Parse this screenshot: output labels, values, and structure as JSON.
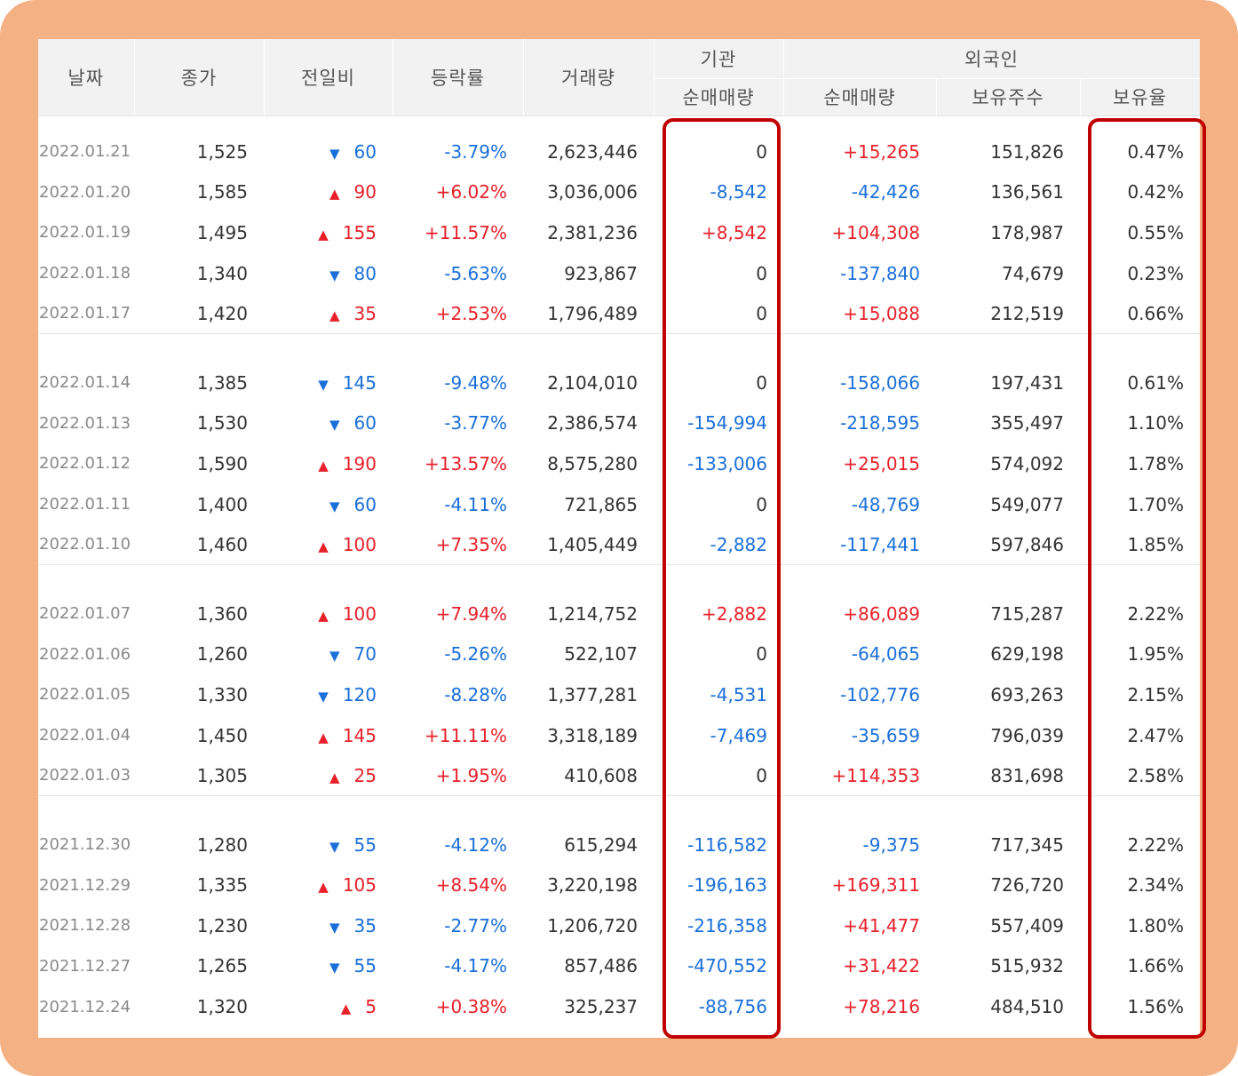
{
  "headers": {
    "date": "날짜",
    "close": "종가",
    "change": "전일비",
    "rate": "등락률",
    "volume": "거래량",
    "institution_group": "기관",
    "foreign_group": "외국인",
    "inst_net": "순매매량",
    "foreign_net": "순매매량",
    "foreign_shares": "보유주수",
    "foreign_ratio": "보유율"
  },
  "groups": [
    [
      {
        "date": "2022.01.21",
        "close": "1,525",
        "dir": "down",
        "change": "60",
        "rate": "-3.79%",
        "volume": "2,623,446",
        "inst": "0",
        "foreign": "+15,265",
        "shares": "151,826",
        "ratio": "0.47%"
      },
      {
        "date": "2022.01.20",
        "close": "1,585",
        "dir": "up",
        "change": "90",
        "rate": "+6.02%",
        "volume": "3,036,006",
        "inst": "-8,542",
        "foreign": "-42,426",
        "shares": "136,561",
        "ratio": "0.42%"
      },
      {
        "date": "2022.01.19",
        "close": "1,495",
        "dir": "up",
        "change": "155",
        "rate": "+11.57%",
        "volume": "2,381,236",
        "inst": "+8,542",
        "foreign": "+104,308",
        "shares": "178,987",
        "ratio": "0.55%"
      },
      {
        "date": "2022.01.18",
        "close": "1,340",
        "dir": "down",
        "change": "80",
        "rate": "-5.63%",
        "volume": "923,867",
        "inst": "0",
        "foreign": "-137,840",
        "shares": "74,679",
        "ratio": "0.23%"
      },
      {
        "date": "2022.01.17",
        "close": "1,420",
        "dir": "up",
        "change": "35",
        "rate": "+2.53%",
        "volume": "1,796,489",
        "inst": "0",
        "foreign": "+15,088",
        "shares": "212,519",
        "ratio": "0.66%"
      }
    ],
    [
      {
        "date": "2022.01.14",
        "close": "1,385",
        "dir": "down",
        "change": "145",
        "rate": "-9.48%",
        "volume": "2,104,010",
        "inst": "0",
        "foreign": "-158,066",
        "shares": "197,431",
        "ratio": "0.61%"
      },
      {
        "date": "2022.01.13",
        "close": "1,530",
        "dir": "down",
        "change": "60",
        "rate": "-3.77%",
        "volume": "2,386,574",
        "inst": "-154,994",
        "foreign": "-218,595",
        "shares": "355,497",
        "ratio": "1.10%"
      },
      {
        "date": "2022.01.12",
        "close": "1,590",
        "dir": "up",
        "change": "190",
        "rate": "+13.57%",
        "volume": "8,575,280",
        "inst": "-133,006",
        "foreign": "+25,015",
        "shares": "574,092",
        "ratio": "1.78%"
      },
      {
        "date": "2022.01.11",
        "close": "1,400",
        "dir": "down",
        "change": "60",
        "rate": "-4.11%",
        "volume": "721,865",
        "inst": "0",
        "foreign": "-48,769",
        "shares": "549,077",
        "ratio": "1.70%"
      },
      {
        "date": "2022.01.10",
        "close": "1,460",
        "dir": "up",
        "change": "100",
        "rate": "+7.35%",
        "volume": "1,405,449",
        "inst": "-2,882",
        "foreign": "-117,441",
        "shares": "597,846",
        "ratio": "1.85%"
      }
    ],
    [
      {
        "date": "2022.01.07",
        "close": "1,360",
        "dir": "up",
        "change": "100",
        "rate": "+7.94%",
        "volume": "1,214,752",
        "inst": "+2,882",
        "foreign": "+86,089",
        "shares": "715,287",
        "ratio": "2.22%"
      },
      {
        "date": "2022.01.06",
        "close": "1,260",
        "dir": "down",
        "change": "70",
        "rate": "-5.26%",
        "volume": "522,107",
        "inst": "0",
        "foreign": "-64,065",
        "shares": "629,198",
        "ratio": "1.95%"
      },
      {
        "date": "2022.01.05",
        "close": "1,330",
        "dir": "down",
        "change": "120",
        "rate": "-8.28%",
        "volume": "1,377,281",
        "inst": "-4,531",
        "foreign": "-102,776",
        "shares": "693,263",
        "ratio": "2.15%"
      },
      {
        "date": "2022.01.04",
        "close": "1,450",
        "dir": "up",
        "change": "145",
        "rate": "+11.11%",
        "volume": "3,318,189",
        "inst": "-7,469",
        "foreign": "-35,659",
        "shares": "796,039",
        "ratio": "2.47%"
      },
      {
        "date": "2022.01.03",
        "close": "1,305",
        "dir": "up",
        "change": "25",
        "rate": "+1.95%",
        "volume": "410,608",
        "inst": "0",
        "foreign": "+114,353",
        "shares": "831,698",
        "ratio": "2.58%"
      }
    ],
    [
      {
        "date": "2021.12.30",
        "close": "1,280",
        "dir": "down",
        "change": "55",
        "rate": "-4.12%",
        "volume": "615,294",
        "inst": "-116,582",
        "foreign": "-9,375",
        "shares": "717,345",
        "ratio": "2.22%"
      },
      {
        "date": "2021.12.29",
        "close": "1,335",
        "dir": "up",
        "change": "105",
        "rate": "+8.54%",
        "volume": "3,220,198",
        "inst": "-196,163",
        "foreign": "+169,311",
        "shares": "726,720",
        "ratio": "2.34%"
      },
      {
        "date": "2021.12.28",
        "close": "1,230",
        "dir": "down",
        "change": "35",
        "rate": "-2.77%",
        "volume": "1,206,720",
        "inst": "-216,358",
        "foreign": "+41,477",
        "shares": "557,409",
        "ratio": "1.80%"
      },
      {
        "date": "2021.12.27",
        "close": "1,265",
        "dir": "down",
        "change": "55",
        "rate": "-4.17%",
        "volume": "857,486",
        "inst": "-470,552",
        "foreign": "+31,422",
        "shares": "515,932",
        "ratio": "1.66%"
      },
      {
        "date": "2021.12.24",
        "close": "1,320",
        "dir": "up",
        "change": "5",
        "rate": "+0.38%",
        "volume": "325,237",
        "inst": "-88,756",
        "foreign": "+78,216",
        "shares": "484,510",
        "ratio": "1.56%"
      }
    ]
  ],
  "icons": {
    "up": "triangle-up-icon",
    "down": "triangle-down-icon"
  },
  "colors": {
    "up": "#e8202a",
    "down": "#1a6fd9",
    "frame": "#f4b183",
    "highlight": "#c00000"
  }
}
